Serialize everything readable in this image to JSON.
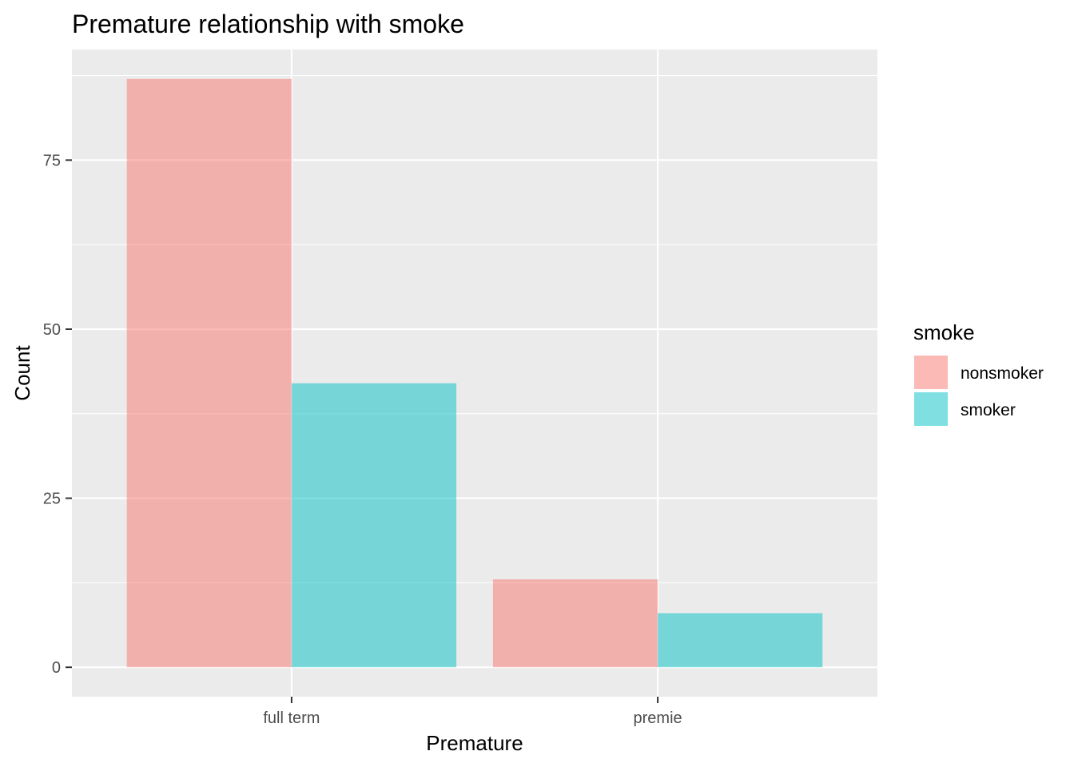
{
  "chart_data": {
    "type": "bar",
    "title": "Premature relationship with smoke",
    "xlabel": "Premature",
    "ylabel": "Count",
    "categories": [
      "full term",
      "premie"
    ],
    "series": [
      {
        "name": "nonsmoker",
        "values": [
          87,
          13
        ],
        "color": "#F8766D"
      },
      {
        "name": "smoker",
        "values": [
          42,
          8
        ],
        "color": "#00BFC4"
      }
    ],
    "yticks": [
      0,
      25,
      50,
      75
    ],
    "ylim": [
      -4.35,
      91.35
    ],
    "legend_title": "smoke",
    "legend_position": "right",
    "grid": true,
    "panel_background": "#EBEBEB",
    "bar_opacity": 0.5
  }
}
